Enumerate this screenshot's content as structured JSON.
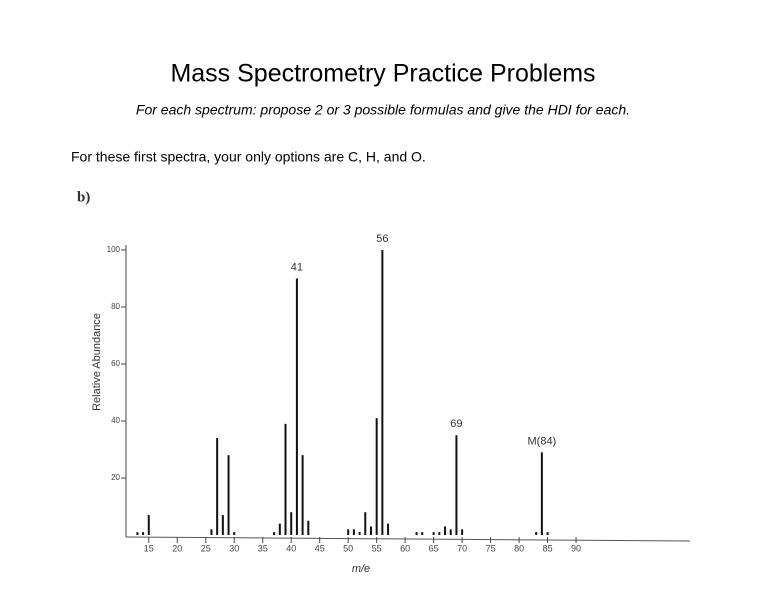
{
  "header": {
    "title": "Mass Spectrometry Practice Problems",
    "subtitle": "For each spectrum: propose 2 or 3 possible formulas and give the HDI for each.",
    "intro": "For these first spectra, your only options are C, H, and O."
  },
  "chart_data": {
    "type": "bar",
    "label": "b)",
    "x": [
      13,
      14,
      15,
      26,
      27,
      28,
      29,
      30,
      37,
      38,
      39,
      40,
      41,
      42,
      43,
      50,
      51,
      52,
      53,
      54,
      55,
      56,
      57,
      62,
      63,
      65,
      66,
      67,
      68,
      69,
      70,
      83,
      84,
      85
    ],
    "values": [
      1,
      1,
      7,
      2,
      34,
      7,
      28,
      1,
      1,
      4,
      39,
      8,
      90,
      28,
      5,
      2,
      2,
      1,
      8,
      3,
      41,
      100,
      4,
      1,
      1,
      1,
      1,
      3,
      2,
      35,
      2,
      1,
      29,
      1
    ],
    "color": "#111111",
    "xlabel": "m/e",
    "ylabel": "Relative Abundance",
    "xlim": [
      11,
      110
    ],
    "ylim": [
      0,
      100
    ],
    "xticks": [
      15,
      20,
      25,
      30,
      35,
      40,
      45,
      50,
      55,
      60,
      65,
      70,
      75,
      80,
      85,
      90
    ],
    "yticks": [
      20,
      40,
      60,
      80,
      100
    ],
    "annotations": [
      {
        "text": "41",
        "x": 41
      },
      {
        "text": "56",
        "x": 56
      },
      {
        "text": "69",
        "x": 69
      },
      {
        "text": "M(84)",
        "x": 84
      }
    ]
  }
}
